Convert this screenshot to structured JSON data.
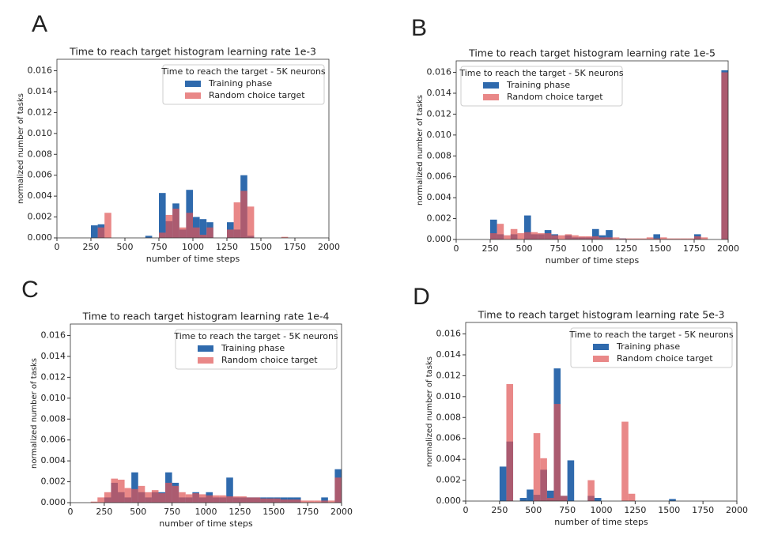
{
  "chart_data": [
    {
      "panel_label": "A",
      "type": "histogram",
      "title": "Time to reach target histogram learning rate 1e-3",
      "xlabel": "number of time steps",
      "ylabel": "normalized number of tasks",
      "legend_title": "Time to reach the target - 5K neurons",
      "legend": "upper right",
      "bins": [
        0,
        50,
        100,
        150,
        200,
        250,
        300,
        350,
        400,
        450,
        500,
        550,
        600,
        650,
        700,
        750,
        800,
        850,
        900,
        950,
        1000,
        1050,
        1100,
        1150,
        1200,
        1250,
        1300,
        1350,
        1400,
        1450,
        1500,
        1550,
        1600,
        1650,
        1700,
        1750,
        1800,
        1850,
        1900,
        1950,
        2000
      ],
      "series": [
        {
          "name": "Training phase",
          "color": "#2f6aad",
          "values": [
            0,
            0,
            0,
            0,
            0,
            0.0012,
            0.0013,
            0,
            0,
            0,
            0,
            0,
            0,
            0.0002,
            0,
            0.0043,
            0.0016,
            0.0033,
            0.0008,
            0.0046,
            0.002,
            0.0018,
            0.0015,
            0,
            0,
            0.0015,
            0.0008,
            0.006,
            0.0002,
            0,
            0,
            0,
            0,
            0,
            0,
            0,
            0,
            0,
            0,
            0
          ]
        },
        {
          "name": "Random choice target",
          "color": "#e05555",
          "values": [
            0,
            0,
            0,
            0,
            0,
            0,
            0.001,
            0.0024,
            0,
            0,
            0,
            0,
            0,
            0,
            0,
            0.0005,
            0.0022,
            0.0028,
            0.001,
            0.0024,
            0.001,
            0.0003,
            0.001,
            0,
            0,
            0.0008,
            0.0034,
            0.0045,
            0.003,
            0,
            0,
            0,
            0,
            0.0001,
            0,
            0,
            0,
            0,
            0,
            0
          ]
        }
      ],
      "xlim": [
        0,
        2000
      ],
      "xticks": [
        0,
        250,
        500,
        750,
        1000,
        1250,
        1500,
        1750,
        2000
      ],
      "ylim": [
        0,
        0.0171
      ],
      "yticks": [
        {
          "value": 0,
          "label": "0.000"
        },
        0.002,
        0.004,
        0.006,
        0.008,
        {
          "value": 0.01,
          "label": "0.010"
        },
        0.012,
        0.014,
        0.016
      ]
    },
    {
      "panel_label": "B",
      "type": "histogram",
      "title": "Time to reach target histogram learning rate 1e-5",
      "xlabel": "number of time steps",
      "ylabel": "normalized number of tasks",
      "legend_title": "Time to reach the target - 5K neurons",
      "legend": "upper left",
      "bins": [
        0,
        50,
        100,
        150,
        200,
        250,
        300,
        350,
        400,
        450,
        500,
        550,
        600,
        650,
        700,
        750,
        800,
        850,
        900,
        950,
        1000,
        1050,
        1100,
        1150,
        1200,
        1250,
        1300,
        1350,
        1400,
        1450,
        1500,
        1550,
        1600,
        1650,
        1700,
        1750,
        1800,
        1850,
        1900,
        1950,
        2000
      ],
      "series": [
        {
          "name": "Training phase",
          "color": "#2f6aad",
          "values": [
            0,
            0,
            0,
            0,
            0,
            0.0019,
            0.0005,
            0,
            0.0005,
            0,
            0.0023,
            0.0005,
            0.0005,
            0.0009,
            0.0005,
            0,
            0.0004,
            0.0002,
            0.0002,
            0.0002,
            0.001,
            0.0004,
            0.0009,
            0,
            0.0001,
            0,
            0,
            0,
            0,
            0.0005,
            0,
            0,
            0,
            0,
            0,
            0.0005,
            0,
            0,
            0,
            0.0162
          ]
        },
        {
          "name": "Random choice target",
          "color": "#e05555",
          "values": [
            0,
            0,
            0,
            0,
            0,
            0.0006,
            0.0015,
            0.0004,
            0.001,
            0.0006,
            0.0007,
            0.0007,
            0.0006,
            0.0006,
            0.0004,
            0.0004,
            0.0005,
            0.0004,
            0.0003,
            0.0003,
            0.0003,
            0.0002,
            0.0002,
            0.0002,
            0.0001,
            0.0001,
            0.0001,
            0.0001,
            0.0002,
            0.0001,
            0.0002,
            0.0001,
            0.0001,
            0.0001,
            0.0001,
            0.0003,
            0.0002,
            0,
            0,
            0.016
          ]
        }
      ],
      "xlim": [
        0,
        2000
      ],
      "xticks": [
        0,
        250,
        500,
        750,
        1000,
        1250,
        1500,
        1750,
        2000
      ],
      "ylim": [
        0,
        0.0171
      ],
      "yticks": [
        {
          "value": 0,
          "label": "0.000"
        },
        0.002,
        0.004,
        0.006,
        0.008,
        {
          "value": 0.01,
          "label": "0.010"
        },
        0.012,
        0.014,
        0.016
      ]
    },
    {
      "panel_label": "C",
      "type": "histogram",
      "title": "Time to reach target histogram learning rate 1e-4",
      "xlabel": "number of time steps",
      "ylabel": "normalized number of tasks",
      "legend_title": "Time to reach the target - 5K neurons",
      "legend": "upper right",
      "bins": [
        0,
        50,
        100,
        150,
        200,
        250,
        300,
        350,
        400,
        450,
        500,
        550,
        600,
        650,
        700,
        750,
        800,
        850,
        900,
        950,
        1000,
        1050,
        1100,
        1150,
        1200,
        1250,
        1300,
        1350,
        1400,
        1450,
        1500,
        1550,
        1600,
        1650,
        1700,
        1750,
        1800,
        1850,
        1900,
        1950,
        2000
      ],
      "series": [
        {
          "name": "Training phase",
          "color": "#2f6aad",
          "values": [
            0,
            0,
            0,
            0,
            0,
            0.0005,
            0.0019,
            0.001,
            0.0005,
            0.0029,
            0.001,
            0.0005,
            0.001,
            0.001,
            0.0029,
            0.0019,
            0.0005,
            0.0005,
            0.001,
            0.0005,
            0.001,
            0.0005,
            0.0005,
            0.0024,
            0.0005,
            0.0005,
            0.0005,
            0.0005,
            0.0005,
            0.0005,
            0.0005,
            0.0005,
            0.0005,
            0.0005,
            0,
            0,
            0,
            0.0005,
            0,
            0.0032
          ]
        },
        {
          "name": "Random choice target",
          "color": "#e05555",
          "values": [
            0,
            0,
            0,
            0.0001,
            0.0005,
            0.001,
            0.0023,
            0.0022,
            0.0014,
            0.0013,
            0.0016,
            0.001,
            0.0012,
            0.0009,
            0.0019,
            0.0016,
            0.001,
            0.0008,
            0.0009,
            0.0008,
            0.0007,
            0.0007,
            0.0007,
            0.0006,
            0.0006,
            0.0006,
            0.0005,
            0.0005,
            0.0004,
            0.0004,
            0.0004,
            0.0003,
            0.0003,
            0.0003,
            0.0002,
            0.0002,
            0.0002,
            0.0002,
            0.0002,
            0.0024
          ]
        }
      ],
      "xlim": [
        0,
        2000
      ],
      "xticks": [
        0,
        250,
        500,
        750,
        1000,
        1250,
        1500,
        1750,
        2000
      ],
      "ylim": [
        0,
        0.0171
      ],
      "yticks": [
        {
          "value": 0,
          "label": "0.000"
        },
        0.002,
        0.004,
        0.006,
        0.008,
        {
          "value": 0.01,
          "label": "0.010"
        },
        0.012,
        0.014,
        0.016
      ]
    },
    {
      "panel_label": "D",
      "type": "histogram",
      "title": "Time to reach target histogram learning rate 5e-3",
      "xlabel": "number of time steps",
      "ylabel": "normalized number of tasks",
      "legend_title": "Time to reach the target - 5K neurons",
      "legend": "upper right",
      "bins": [
        0,
        50,
        100,
        150,
        200,
        250,
        300,
        350,
        400,
        450,
        500,
        550,
        600,
        650,
        700,
        750,
        800,
        850,
        900,
        950,
        1000,
        1050,
        1100,
        1150,
        1200,
        1250,
        1300,
        1350,
        1400,
        1450,
        1500,
        1550,
        1600,
        1650,
        1700,
        1750,
        1800,
        1850,
        1900,
        1950,
        2000
      ],
      "series": [
        {
          "name": "Training phase",
          "color": "#2f6aad",
          "values": [
            0,
            0,
            0,
            0,
            0,
            0.0033,
            0.0057,
            0,
            0.0003,
            0.0011,
            0.0006,
            0.003,
            0.001,
            0.0127,
            0.0005,
            0.0039,
            0,
            0,
            0.0005,
            0.0003,
            0,
            0,
            0,
            0,
            0,
            0,
            0,
            0,
            0,
            0,
            0.0002,
            0,
            0,
            0,
            0,
            0,
            0,
            0,
            0,
            0
          ]
        },
        {
          "name": "Random choice target",
          "color": "#e05555",
          "values": [
            0,
            0,
            0,
            0,
            0,
            0,
            0.0112,
            0,
            0,
            0,
            0.0065,
            0.0041,
            0.0003,
            0.0093,
            0.0005,
            0,
            0,
            0,
            0.002,
            0,
            0,
            0,
            0,
            0.0076,
            0.0007,
            0,
            0,
            0,
            0,
            0,
            0,
            0,
            0,
            0,
            0,
            0,
            0,
            0,
            0,
            0
          ]
        }
      ],
      "xlim": [
        0,
        2000
      ],
      "xticks": [
        0,
        250,
        500,
        750,
        1000,
        1250,
        1500,
        1750,
        2000
      ],
      "ylim": [
        0,
        0.0171
      ],
      "yticks": [
        {
          "value": 0,
          "label": "0.000"
        },
        0.002,
        0.004,
        0.006,
        0.008,
        {
          "value": 0.01,
          "label": "0.010"
        },
        0.012,
        0.014,
        0.016
      ]
    }
  ]
}
